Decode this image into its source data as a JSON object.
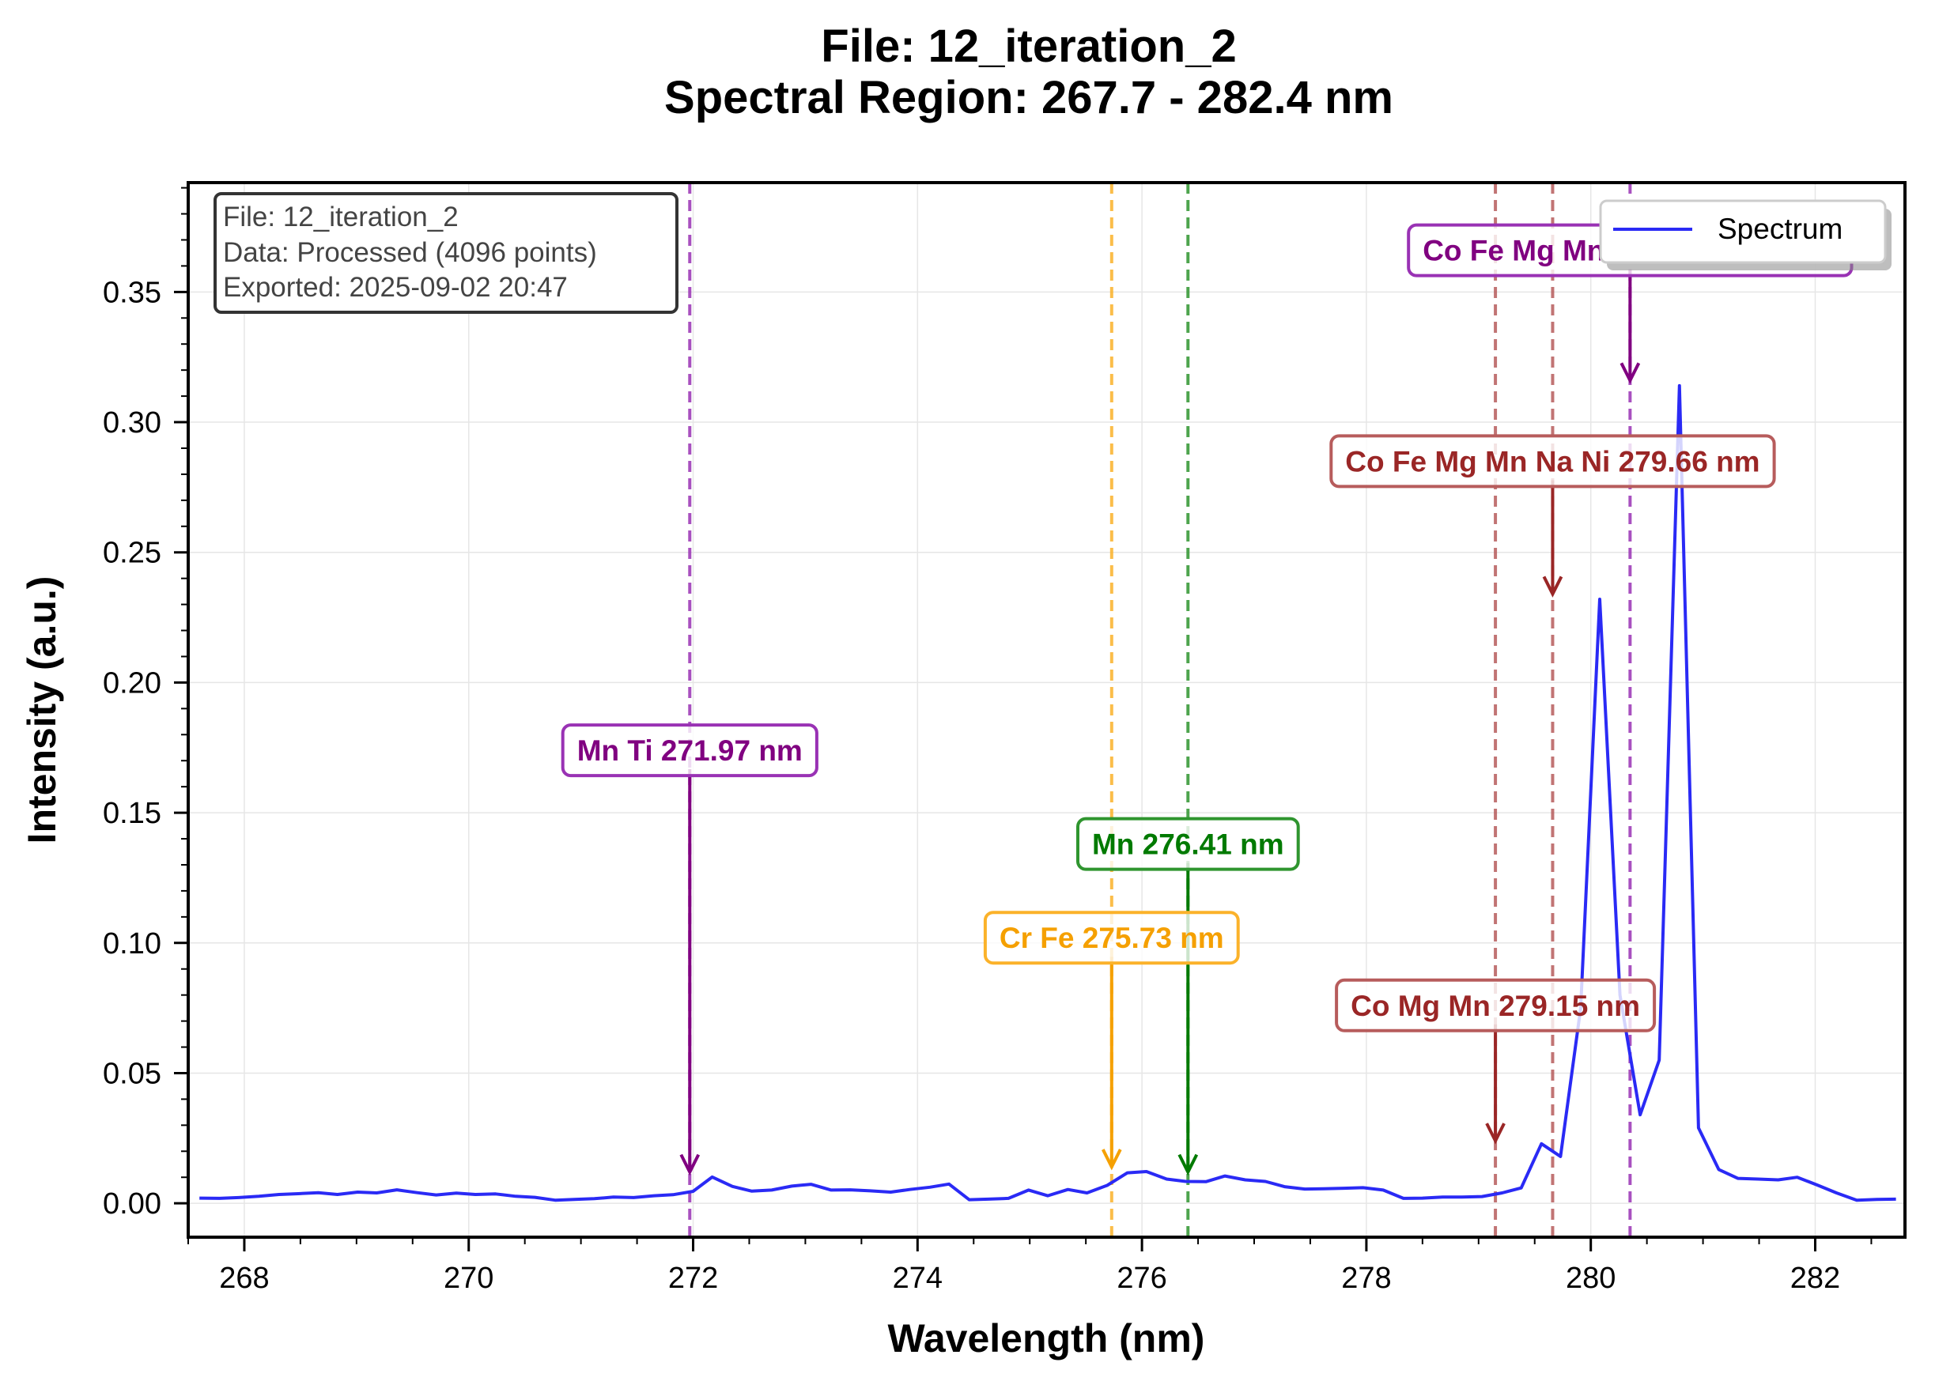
{
  "chart_data": {
    "type": "line",
    "title": "File: 12_iteration_2",
    "subtitle": "Spectral Region: 267.7 - 282.4 nm",
    "xlabel": "Wavelength (nm)",
    "ylabel": "Intensity (a.u.)",
    "xlim": [
      267.5,
      282.8
    ],
    "ylim": [
      -0.013,
      0.392
    ],
    "x_ticks": [
      268,
      270,
      272,
      274,
      276,
      278,
      280,
      282
    ],
    "x_tick_labels": [
      "268",
      "270",
      "272",
      "274",
      "276",
      "278",
      "280",
      "282"
    ],
    "y_ticks": [
      0.0,
      0.05,
      0.1,
      0.15,
      0.2,
      0.25,
      0.3,
      0.35
    ],
    "y_tick_labels": [
      "0.00",
      "0.05",
      "0.10",
      "0.15",
      "0.20",
      "0.25",
      "0.30",
      "0.35"
    ],
    "grid": true,
    "legend": {
      "position": "top-right",
      "entries": [
        "Spectrum"
      ]
    },
    "info_box": [
      "File: 12_iteration_2",
      "Data: Processed (4096 points)",
      "Exported: 2025-09-02 20:47"
    ],
    "series": [
      {
        "name": "Spectrum",
        "color": "#2a2af5",
        "x": [
          267.6,
          267.78,
          267.95,
          268.13,
          268.31,
          268.48,
          268.66,
          268.83,
          269.01,
          269.18,
          269.36,
          269.54,
          269.71,
          269.89,
          270.06,
          270.24,
          270.42,
          270.59,
          270.77,
          270.94,
          271.12,
          271.29,
          271.47,
          271.65,
          271.82,
          272.0,
          272.17,
          272.35,
          272.52,
          272.7,
          272.88,
          273.05,
          273.23,
          273.4,
          273.58,
          273.76,
          273.93,
          274.11,
          274.28,
          274.46,
          274.63,
          274.81,
          274.99,
          275.16,
          275.34,
          275.51,
          275.69,
          275.87,
          276.04,
          276.22,
          276.39,
          276.57,
          276.74,
          276.92,
          277.1,
          277.27,
          277.45,
          277.62,
          277.8,
          277.97,
          278.15,
          278.33,
          278.5,
          278.68,
          278.85,
          279.03,
          279.21,
          279.38,
          279.56,
          279.73,
          279.91,
          280.08,
          280.26,
          280.44,
          280.61,
          280.79,
          280.96,
          281.14,
          281.31,
          281.49,
          281.67,
          281.84,
          282.02,
          282.19,
          282.37,
          282.55,
          282.72
        ],
        "y": [
          0.002,
          0.0019,
          0.0022,
          0.0027,
          0.0034,
          0.0037,
          0.0041,
          0.0034,
          0.0043,
          0.004,
          0.0052,
          0.0041,
          0.0032,
          0.0039,
          0.0034,
          0.0036,
          0.0027,
          0.0023,
          0.0012,
          0.0015,
          0.0018,
          0.0024,
          0.0022,
          0.0029,
          0.0033,
          0.0046,
          0.0101,
          0.0065,
          0.0047,
          0.0051,
          0.0066,
          0.0073,
          0.0051,
          0.0052,
          0.0048,
          0.0043,
          0.0053,
          0.0062,
          0.0074,
          0.0014,
          0.0016,
          0.0019,
          0.0051,
          0.0029,
          0.0053,
          0.004,
          0.0069,
          0.0117,
          0.0122,
          0.0093,
          0.0084,
          0.0083,
          0.0105,
          0.009,
          0.0084,
          0.0064,
          0.0055,
          0.0056,
          0.0058,
          0.006,
          0.0051,
          0.0019,
          0.002,
          0.0024,
          0.0024,
          0.0026,
          0.004,
          0.0059,
          0.0229,
          0.018,
          0.075,
          0.232,
          0.08,
          0.034,
          0.055,
          0.314,
          0.029,
          0.013,
          0.0096,
          0.0093,
          0.009,
          0.01,
          0.007,
          0.004,
          0.0012,
          0.0015,
          0.0016
        ]
      }
    ],
    "annotations": [
      {
        "label": "Mn Ti 271.97 nm",
        "x": 271.97,
        "label_y": 0.174,
        "arrow_y": 0.012,
        "color": "#800080",
        "line_color": "#9932b4"
      },
      {
        "label": "Cr Fe 275.73 nm",
        "x": 275.73,
        "label_y": 0.102,
        "arrow_y": 0.014,
        "color": "#f5a000",
        "line_color": "#fbb22a"
      },
      {
        "label": "Mn 276.41 nm",
        "x": 276.41,
        "label_y": 0.138,
        "arrow_y": 0.012,
        "color": "#007a00",
        "line_color": "#2f952f"
      },
      {
        "label": "Co Mg Mn 279.15 nm",
        "x": 279.15,
        "label_y": 0.076,
        "arrow_y": 0.024,
        "color": "#9a2626",
        "line_color": "#b75c5c"
      },
      {
        "label": "Co Fe Mg Mn Na Ni 279.66 nm",
        "x": 279.66,
        "label_y": 0.285,
        "arrow_y": 0.234,
        "color": "#9a2626",
        "line_color": "#b75c5c"
      },
      {
        "label": "Co Fe Mg Mn Na Ni 280.35 nm",
        "x": 280.35,
        "label_y": 0.366,
        "arrow_y": 0.316,
        "color": "#800080",
        "line_color": "#9932b4"
      }
    ]
  }
}
